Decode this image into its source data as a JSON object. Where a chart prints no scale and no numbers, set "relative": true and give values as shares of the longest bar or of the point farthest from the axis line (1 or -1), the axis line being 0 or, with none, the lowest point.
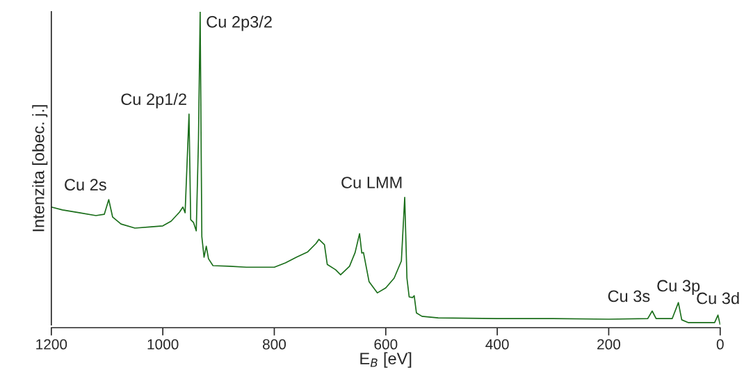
{
  "chart_data": {
    "type": "line",
    "relative": true,
    "xlabel": "E$_{B}$ [eV]",
    "ylabel": "Intenzita [obec. j.]",
    "xlim": [
      1200,
      0
    ],
    "xticks": [
      1200,
      1000,
      800,
      600,
      400,
      200,
      0
    ],
    "grid": false,
    "legend": false,
    "marker": "none",
    "line_style": "solid",
    "x": [
      1200,
      1180,
      1150,
      1120,
      1105,
      1097,
      1090,
      1075,
      1050,
      1020,
      1000,
      985,
      970,
      964,
      960,
      953,
      950,
      945,
      940,
      936,
      933,
      930,
      926,
      922,
      918,
      910,
      880,
      850,
      800,
      780,
      760,
      740,
      725,
      720,
      710,
      705,
      690,
      681,
      665,
      655,
      647,
      643,
      640,
      630,
      615,
      600,
      585,
      572,
      566,
      562,
      558,
      552,
      549,
      545,
      535,
      506,
      400,
      300,
      200,
      130,
      122,
      115,
      86,
      75,
      69,
      57,
      10,
      4,
      0
    ],
    "series": [
      {
        "color": "#1a6e1a",
        "values": [
          0.376,
          0.367,
          0.358,
          0.349,
          0.353,
          0.4,
          0.344,
          0.322,
          0.309,
          0.313,
          0.316,
          0.331,
          0.36,
          0.376,
          0.358,
          0.673,
          0.336,
          0.327,
          0.3,
          0.593,
          1.0,
          0.282,
          0.216,
          0.251,
          0.211,
          0.189,
          0.187,
          0.184,
          0.184,
          0.198,
          0.216,
          0.233,
          0.26,
          0.273,
          0.256,
          0.193,
          0.176,
          0.16,
          0.187,
          0.231,
          0.291,
          0.229,
          0.231,
          0.138,
          0.102,
          0.118,
          0.149,
          0.204,
          0.407,
          0.149,
          0.089,
          0.087,
          0.093,
          0.038,
          0.027,
          0.022,
          0.02,
          0.02,
          0.018,
          0.02,
          0.044,
          0.02,
          0.02,
          0.071,
          0.016,
          0.007,
          0.007,
          0.031,
          0.0
        ]
      }
    ],
    "annotations": [
      {
        "text": "Cu 2s",
        "x": 1097,
        "y": 0.4
      },
      {
        "text": "Cu 2p1/2",
        "x": 953,
        "y": 0.673
      },
      {
        "text": "Cu 2p3/2",
        "x": 933,
        "y": 1.0
      },
      {
        "text": "Cu LMM",
        "x": 566,
        "y": 0.407
      },
      {
        "text": "Cu 3s",
        "x": 122,
        "y": 0.044
      },
      {
        "text": "Cu 3p",
        "x": 75,
        "y": 0.071
      },
      {
        "text": "Cu 3d",
        "x": 4,
        "y": 0.031
      }
    ]
  }
}
